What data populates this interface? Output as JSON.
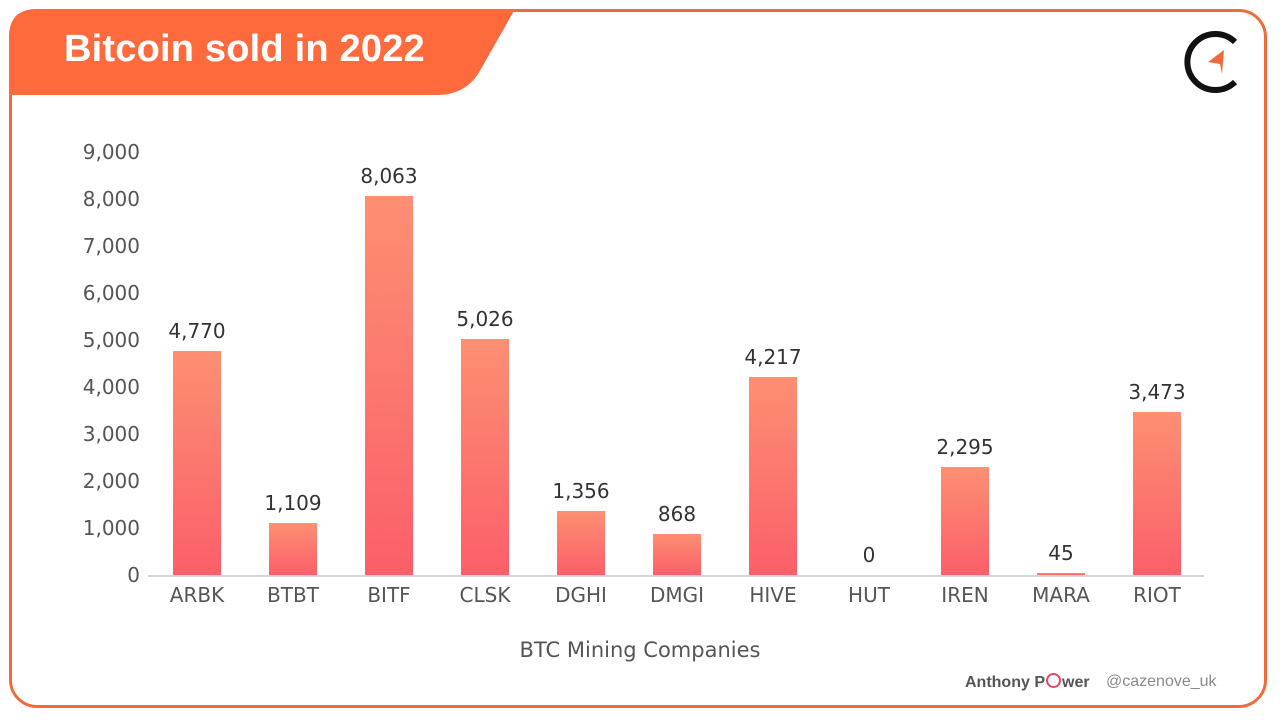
{
  "header": {
    "title": "Bitcoin sold in 2022",
    "banner_color": "#ff6a3c",
    "logo_icon": "compass-c-logo"
  },
  "footer": {
    "author_prefix": "Anthony P",
    "author_suffix": "wer",
    "handle": "@cazenove_uk"
  },
  "colors": {
    "frame": "#f26a3a",
    "bar_top": "#fd8f72",
    "bar_bottom": "#fb5f6a",
    "logo_accent": "#f26a3a"
  },
  "chart_data": {
    "type": "bar",
    "title": "Bitcoin sold in 2022",
    "xlabel": "BTC Mining Companies",
    "ylabel": "",
    "categories": [
      "ARBK",
      "BTBT",
      "BITF",
      "CLSK",
      "DGHI",
      "DMGI",
      "HIVE",
      "HUT",
      "IREN",
      "MARA",
      "RIOT"
    ],
    "values": [
      4770,
      1109,
      8063,
      5026,
      1356,
      868,
      4217,
      0,
      2295,
      45,
      3473
    ],
    "value_labels": [
      "4,770",
      "1,109",
      "8,063",
      "5,026",
      "1,356",
      "868",
      "4,217",
      "0",
      "2,295",
      "45",
      "3,473"
    ],
    "ylim": [
      0,
      9000
    ],
    "yticks": [
      "0",
      "1,000",
      "2,000",
      "3,000",
      "4,000",
      "5,000",
      "6,000",
      "7,000",
      "8,000",
      "9,000"
    ],
    "grid": false,
    "legend": null
  }
}
